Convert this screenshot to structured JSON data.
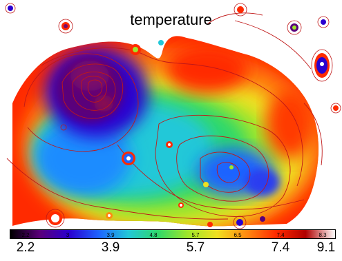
{
  "figure": {
    "title": "temperature",
    "colorbar": {
      "colors": [
        "#000000",
        "#5a007a",
        "#2a00d0",
        "#1e64ff",
        "#22c8d8",
        "#2fd86a",
        "#9ee62a",
        "#f0e020",
        "#ff8a10",
        "#ff2a00",
        "#b00000",
        "#ffffff"
      ],
      "major_ticks": [
        "2.2",
        "3.9",
        "5.7",
        "7.4",
        "9.1"
      ],
      "minor_ticks": [
        "2.2",
        "3",
        "3.9",
        "4.8",
        "5.7",
        "6.5",
        "7.4",
        "8.3",
        "9.1"
      ]
    }
  }
}
